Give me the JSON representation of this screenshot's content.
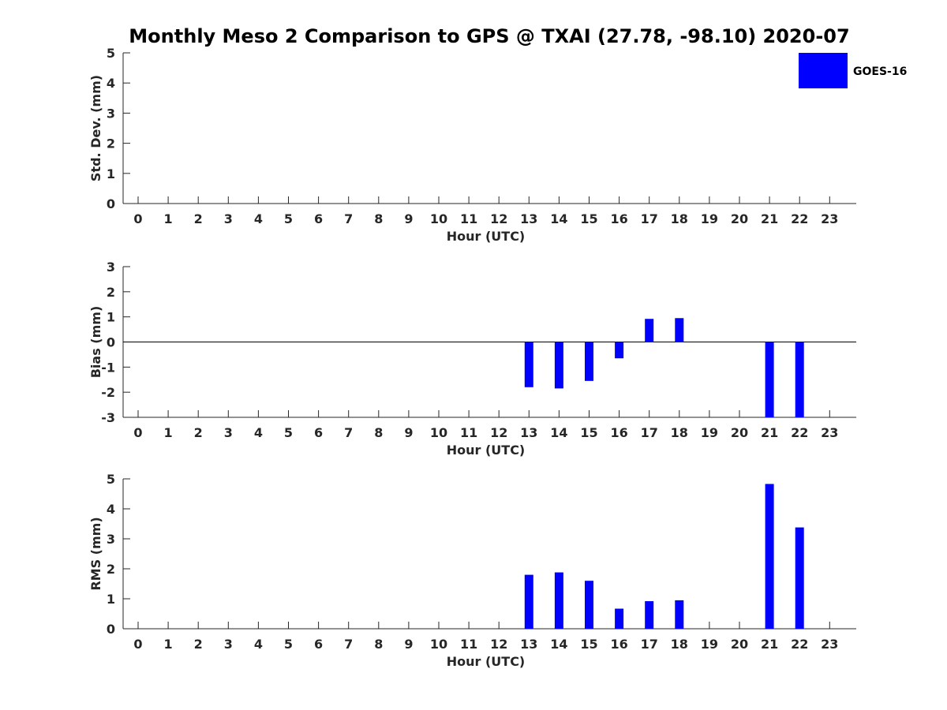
{
  "title": "Monthly Meso 2 Comparison to GPS @ TXAI (27.78, -98.10) 2020-07",
  "legend": {
    "label": "GOES-16",
    "color": "#0000ff"
  },
  "chart_data": [
    {
      "type": "bar",
      "ylabel": "Std. Dev. (mm)",
      "xlabel": "Hour (UTC)",
      "ylim": [
        0,
        5
      ],
      "yticks": [
        0,
        1,
        2,
        3,
        4,
        5
      ],
      "x": [
        0,
        1,
        2,
        3,
        4,
        5,
        6,
        7,
        8,
        9,
        10,
        11,
        12,
        13,
        14,
        15,
        16,
        17,
        18,
        19,
        20,
        21,
        22,
        23
      ],
      "series": [
        {
          "name": "GOES-16",
          "color": "#0000ff",
          "values": [
            null,
            null,
            null,
            null,
            null,
            null,
            null,
            null,
            null,
            null,
            null,
            null,
            null,
            null,
            null,
            null,
            null,
            null,
            null,
            null,
            null,
            null,
            null,
            null
          ]
        }
      ]
    },
    {
      "type": "bar",
      "ylabel": "Bias (mm)",
      "xlabel": "Hour (UTC)",
      "ylim": [
        -3,
        3
      ],
      "yticks": [
        -3,
        -2,
        -1,
        0,
        1,
        2,
        3
      ],
      "zero_line": true,
      "x": [
        0,
        1,
        2,
        3,
        4,
        5,
        6,
        7,
        8,
        9,
        10,
        11,
        12,
        13,
        14,
        15,
        16,
        17,
        18,
        19,
        20,
        21,
        22,
        23
      ],
      "series": [
        {
          "name": "GOES-16",
          "color": "#0000ff",
          "values": [
            null,
            null,
            null,
            null,
            null,
            null,
            null,
            null,
            null,
            null,
            null,
            null,
            null,
            -1.8,
            -1.85,
            -1.55,
            -0.65,
            0.92,
            0.95,
            null,
            null,
            -3.0,
            -3.0,
            null
          ]
        }
      ]
    },
    {
      "type": "bar",
      "ylabel": "RMS (mm)",
      "xlabel": "Hour (UTC)",
      "ylim": [
        0,
        5
      ],
      "yticks": [
        0,
        1,
        2,
        3,
        4,
        5
      ],
      "x": [
        0,
        1,
        2,
        3,
        4,
        5,
        6,
        7,
        8,
        9,
        10,
        11,
        12,
        13,
        14,
        15,
        16,
        17,
        18,
        19,
        20,
        21,
        22,
        23
      ],
      "series": [
        {
          "name": "GOES-16",
          "color": "#0000ff",
          "values": [
            null,
            null,
            null,
            null,
            null,
            null,
            null,
            null,
            null,
            null,
            null,
            null,
            null,
            1.8,
            1.88,
            1.6,
            0.67,
            0.92,
            0.95,
            null,
            null,
            4.83,
            3.38,
            null
          ]
        }
      ]
    }
  ]
}
